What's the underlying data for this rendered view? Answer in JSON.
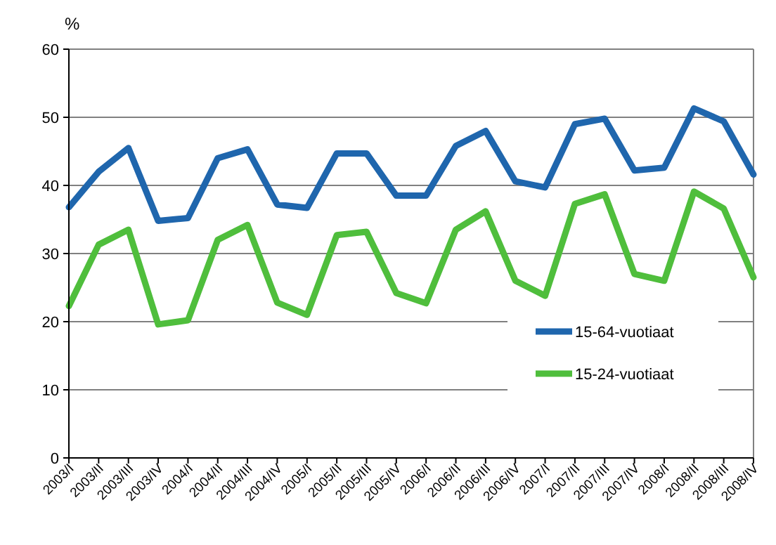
{
  "chart_data": {
    "type": "line",
    "ylabel": "%",
    "categories": [
      "2003/I",
      "2003/II",
      "2003/III",
      "2003/IV",
      "2004/I",
      "2004/II",
      "2004/III",
      "2004/IV",
      "2005/I",
      "2005/II",
      "2005/III",
      "2005/IV",
      "2006/I",
      "2006/II",
      "2006/III",
      "2006/IV",
      "2007/I",
      "2007/II",
      "2007/III",
      "2007/IV",
      "2008/I",
      "2008/II",
      "2008/III",
      "2008/IV"
    ],
    "series": [
      {
        "name": "15-64-vuotiaat",
        "color": "#1f66ad",
        "values": [
          36.8,
          42,
          45.5,
          34.8,
          35.2,
          44,
          45.3,
          37.2,
          36.7,
          44.7,
          44.7,
          38.5,
          38.5,
          45.8,
          48,
          40.6,
          39.7,
          49,
          49.8,
          42.2,
          42.6,
          51.3,
          49.4,
          41.6
        ]
      },
      {
        "name": "15-24-vuotiaat",
        "color": "#4fbe3c",
        "values": [
          22.3,
          31.3,
          33.5,
          19.6,
          20.2,
          32,
          34.2,
          22.8,
          21,
          32.7,
          33.2,
          24.2,
          22.7,
          33.5,
          36.2,
          26,
          23.8,
          37.3,
          38.7,
          27,
          26,
          39.1,
          36.6,
          26.5
        ]
      }
    ],
    "ylim": [
      0,
      60
    ],
    "yticks": [
      0,
      10,
      20,
      30,
      40,
      50,
      60
    ],
    "grid": "y",
    "legend": "bottom right",
    "marker": "none",
    "line_style": "solid"
  }
}
